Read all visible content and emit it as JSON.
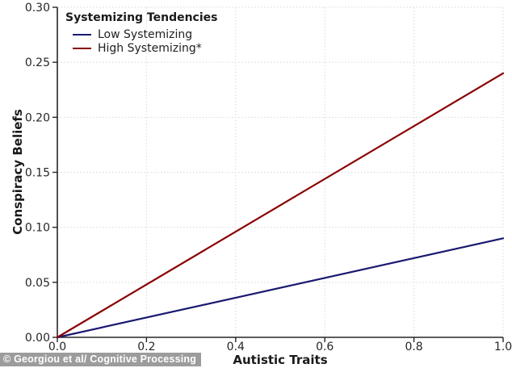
{
  "watermark": {
    "text": "© Georgiou et al/ Cognitive Processing",
    "bg_color": "#9c9c9c",
    "text_color": "#ffffff"
  },
  "chart_data": {
    "type": "line",
    "title": "",
    "xlabel": "Autistic Traits",
    "ylabel": "Conspiracy Beliefs",
    "xlim": [
      0.0,
      1.0
    ],
    "ylim": [
      0.0,
      0.3
    ],
    "x_ticks": [
      0.0,
      0.2,
      0.4,
      0.6,
      0.8,
      1.0
    ],
    "x_tick_labels": [
      "0.0",
      "0.2",
      "0.4",
      "0.6",
      "0.8",
      "1.0"
    ],
    "y_ticks": [
      0.0,
      0.05,
      0.1,
      0.15,
      0.2,
      0.25,
      0.3
    ],
    "y_tick_labels": [
      "0.00",
      "0.05",
      "0.10",
      "0.15",
      "0.20",
      "0.25",
      "0.30"
    ],
    "grid": true,
    "grid_color": "#d8d8d8",
    "axis_color": "#262626",
    "legend": {
      "title": "Systemizing Tendencies",
      "position": "upper-left"
    },
    "series": [
      {
        "name": "Low Systemizing",
        "color": "#191970",
        "x": [
          0.0,
          1.0
        ],
        "y": [
          0.0,
          0.09
        ]
      },
      {
        "name": "High Systemizing*",
        "color": "#8b0000",
        "x": [
          0.0,
          1.0
        ],
        "y": [
          0.0,
          0.24
        ]
      }
    ]
  }
}
